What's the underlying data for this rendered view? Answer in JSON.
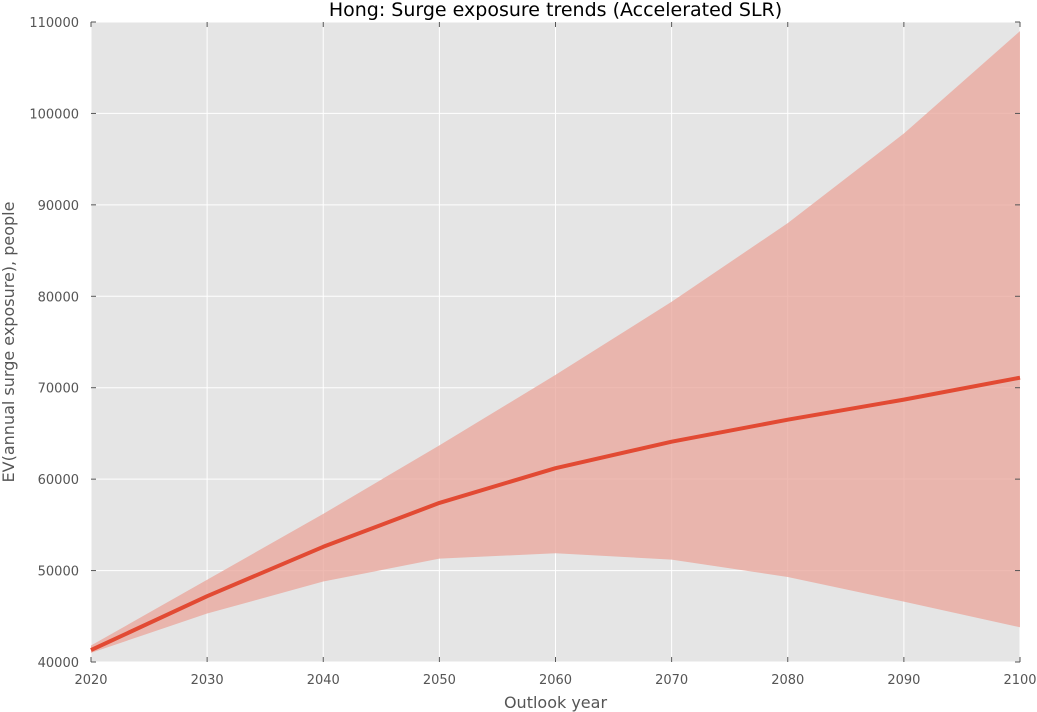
{
  "chart_data": {
    "type": "line",
    "title": "Hong: Surge exposure trends (Accelerated SLR)",
    "xlabel": "Outlook year",
    "ylabel": "EV(annual surge exposure), people",
    "xlim": [
      2020,
      2100
    ],
    "ylim": [
      40000,
      110000
    ],
    "x_ticks": [
      2020,
      2030,
      2040,
      2050,
      2060,
      2070,
      2080,
      2090,
      2100
    ],
    "y_ticks": [
      40000,
      50000,
      60000,
      70000,
      80000,
      90000,
      100000,
      110000
    ],
    "grid": true,
    "x": [
      2020,
      2030,
      2040,
      2050,
      2060,
      2070,
      2080,
      2090,
      2100
    ],
    "series": [
      {
        "values": [
          41300,
          47200,
          52600,
          57400,
          61200,
          64100,
          66500,
          68700,
          71100
        ]
      }
    ],
    "band": {
      "lower": [
        41000,
        45300,
        48800,
        51300,
        51900,
        51200,
        49300,
        46600,
        43800
      ],
      "upper": [
        41800,
        49000,
        56200,
        63700,
        71400,
        79400,
        88000,
        97800,
        109000
      ]
    },
    "colors": {
      "line": "#e24a33",
      "band": "#e9a49a",
      "plot_bg": "#e5e5e5",
      "grid": "#ffffff"
    }
  }
}
